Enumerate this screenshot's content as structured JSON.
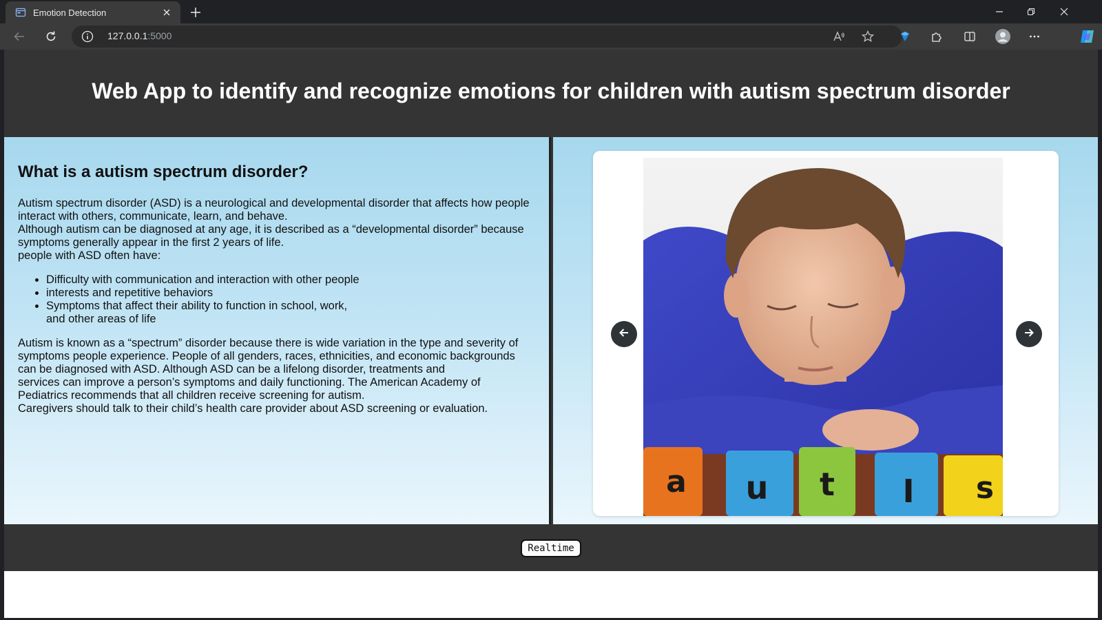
{
  "browser": {
    "tab_title": "Emotion Detection",
    "url_host": "127.0.0.1",
    "url_port": ":5000",
    "icons": [
      "tab-favicon",
      "close-icon",
      "new-tab-icon",
      "minimize-icon",
      "restore-icon",
      "window-close-icon",
      "back-icon",
      "reload-icon",
      "info-icon",
      "read-aloud-icon",
      "favorite-star-icon",
      "extension-shield-icon",
      "extensions-icon",
      "split-screen-icon",
      "profile-icon",
      "more-icon",
      "copilot-icon"
    ]
  },
  "page": {
    "title": "Web App to identify and recognize emotions for children with autism spectrum disorder",
    "left": {
      "heading": "What is a autism spectrum disorder?",
      "intro_lines": [
        "Autism spectrum disorder (ASD) is a neurological and developmental disorder that affects how people",
        "interact with others, communicate, learn, and behave.",
        "Although autism can be diagnosed at any age, it is described as a “developmental disorder” because",
        "symptoms generally appear in the first 2 years of life.",
        "people with ASD often have:"
      ],
      "bullets": [
        "Difficulty with communication and interaction with other people",
        "interests and repetitive behaviors",
        "Symptoms that affect their ability to function in school, work,",
        "and other areas of life"
      ],
      "closing_lines": [
        "Autism is known as a “spectrum” disorder because there is wide variation in the type and severity of",
        "symptoms people experience. People of all genders, races, ethnicities, and economic backgrounds",
        "can be diagnosed with ASD. Although ASD can be a lifelong disorder, treatments and",
        "services can improve a person’s symptoms and daily functioning. The American Academy of",
        "Pediatrics recommends that all children receive screening for autism.",
        "Caregivers should talk to their child’s health care provider about ASD screening or evaluation."
      ]
    },
    "carousel": {
      "block_letters": [
        "a",
        "u",
        "t",
        "I",
        "s"
      ],
      "block_colors": [
        "#e8731f",
        "#3aa0dc",
        "#8cc63f",
        "#3aa0dc",
        "#f2d21a"
      ]
    },
    "footer": {
      "realtime_label": "Realtime"
    }
  }
}
